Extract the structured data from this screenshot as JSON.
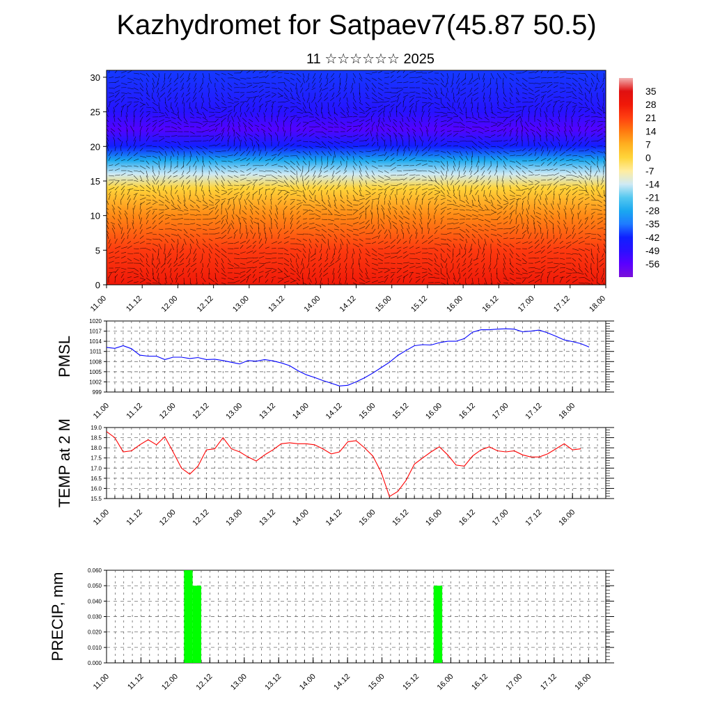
{
  "header": {
    "title": "Kazhydromet for Satpaev7(45.87 50.5)",
    "subtitle": "11 ☆☆☆☆☆☆ 2025"
  },
  "chart_data": [
    {
      "type": "heatmap",
      "title": "",
      "xlabel": "",
      "ylabel": "",
      "x_ticks": [
        "11.00",
        "11.12",
        "12.00",
        "12.12",
        "13.00",
        "13.12",
        "14.00",
        "14.12",
        "15.00",
        "15.12",
        "16.00",
        "16.12",
        "17.00",
        "17.12",
        "18.00"
      ],
      "y_ticks": [
        0,
        5,
        10,
        15,
        20,
        25,
        30
      ],
      "ylim": [
        0,
        31
      ],
      "xlim": [
        0,
        168
      ],
      "colorbar_labels": [
        35,
        28,
        21,
        14,
        7,
        0,
        -7,
        -14,
        -21,
        -28,
        -35,
        -42,
        -49,
        -56
      ],
      "colorbar_range": [
        -63,
        42
      ],
      "temperature_profile": [
        {
          "height": 0,
          "value": 28
        },
        {
          "height": 5,
          "value": 22
        },
        {
          "height": 10,
          "value": 12
        },
        {
          "height": 14,
          "value": 0
        },
        {
          "height": 16,
          "value": -14
        },
        {
          "height": 18,
          "value": -28
        },
        {
          "height": 20,
          "value": -42
        },
        {
          "height": 22.5,
          "value": -55
        },
        {
          "height": 25,
          "value": -48
        },
        {
          "height": 31,
          "value": -40
        }
      ],
      "overlay": "wind vectors"
    },
    {
      "type": "line",
      "ylabel": "PMSL",
      "ylim": [
        999,
        1020
      ],
      "y_ticks": [
        999,
        1002,
        1005,
        1008,
        1011,
        1014,
        1017,
        1020
      ],
      "x_ticks": [
        "11.00",
        "11.12",
        "12.00",
        "12.12",
        "13.00",
        "13.12",
        "14.00",
        "14.12",
        "15.00",
        "15.12",
        "16.00",
        "16.12",
        "17.00",
        "17.12",
        "18.00"
      ],
      "line_color": "#0000ff",
      "series": [
        {
          "values": [
            {
              "x": 0,
              "y": 1012.2
            },
            {
              "x": 3,
              "y": 1011.9
            },
            {
              "x": 6,
              "y": 1012.7
            },
            {
              "x": 9,
              "y": 1011.8
            },
            {
              "x": 12,
              "y": 1009.9
            },
            {
              "x": 15,
              "y": 1009.6
            },
            {
              "x": 18,
              "y": 1009.6
            },
            {
              "x": 21,
              "y": 1008.6
            },
            {
              "x": 24,
              "y": 1009.3
            },
            {
              "x": 27,
              "y": 1009.3
            },
            {
              "x": 30,
              "y": 1008.9
            },
            {
              "x": 33,
              "y": 1009.2
            },
            {
              "x": 36,
              "y": 1008.6
            },
            {
              "x": 39,
              "y": 1008.7
            },
            {
              "x": 42,
              "y": 1008.3
            },
            {
              "x": 45,
              "y": 1007.8
            },
            {
              "x": 48,
              "y": 1007.3
            },
            {
              "x": 51,
              "y": 1008.3
            },
            {
              "x": 54,
              "y": 1008.1
            },
            {
              "x": 57,
              "y": 1008.6
            },
            {
              "x": 60,
              "y": 1008.2
            },
            {
              "x": 63,
              "y": 1007.6
            },
            {
              "x": 66,
              "y": 1006.8
            },
            {
              "x": 69,
              "y": 1005.3
            },
            {
              "x": 72,
              "y": 1004.1
            },
            {
              "x": 75,
              "y": 1003.3
            },
            {
              "x": 78,
              "y": 1002.4
            },
            {
              "x": 81,
              "y": 1001.6
            },
            {
              "x": 84,
              "y": 1000.8
            },
            {
              "x": 87,
              "y": 1001.0
            },
            {
              "x": 90,
              "y": 1002.0
            },
            {
              "x": 93,
              "y": 1003.2
            },
            {
              "x": 96,
              "y": 1004.6
            },
            {
              "x": 99,
              "y": 1006.2
            },
            {
              "x": 102,
              "y": 1007.8
            },
            {
              "x": 105,
              "y": 1009.8
            },
            {
              "x": 108,
              "y": 1011.3
            },
            {
              "x": 111,
              "y": 1012.7
            },
            {
              "x": 114,
              "y": 1013.0
            },
            {
              "x": 117,
              "y": 1012.9
            },
            {
              "x": 120,
              "y": 1013.6
            },
            {
              "x": 123,
              "y": 1014.0
            },
            {
              "x": 126,
              "y": 1014.0
            },
            {
              "x": 129,
              "y": 1014.8
            },
            {
              "x": 132,
              "y": 1016.7
            },
            {
              "x": 135,
              "y": 1017.4
            },
            {
              "x": 138,
              "y": 1017.4
            },
            {
              "x": 141,
              "y": 1017.6
            },
            {
              "x": 144,
              "y": 1017.7
            },
            {
              "x": 147,
              "y": 1017.6
            },
            {
              "x": 150,
              "y": 1016.8
            },
            {
              "x": 153,
              "y": 1017.0
            },
            {
              "x": 156,
              "y": 1017.3
            },
            {
              "x": 159,
              "y": 1016.5
            },
            {
              "x": 162,
              "y": 1015.5
            },
            {
              "x": 165,
              "y": 1014.4
            },
            {
              "x": 168,
              "y": 1013.9
            },
            {
              "x": 171,
              "y": 1013.3
            },
            {
              "x": 174,
              "y": 1012.3
            }
          ]
        }
      ]
    },
    {
      "type": "line",
      "ylabel": "TEMP at 2 M",
      "ylim": [
        15.5,
        19.0
      ],
      "y_ticks": [
        "15.5",
        "16.0",
        "16.5",
        "17.0",
        "17.5",
        "18.0",
        "18.5",
        "19.0"
      ],
      "x_ticks": [
        "11.00",
        "11.12",
        "12.00",
        "12.12",
        "13.00",
        "13.12",
        "14.00",
        "14.12",
        "15.00",
        "15.12",
        "16.00",
        "16.12",
        "17.00",
        "17.12",
        "18.00"
      ],
      "line_color": "#ff0000",
      "series": [
        {
          "values": [
            {
              "x": 0,
              "y": 18.8
            },
            {
              "x": 3,
              "y": 18.5
            },
            {
              "x": 6,
              "y": 17.8
            },
            {
              "x": 9,
              "y": 17.85
            },
            {
              "x": 12,
              "y": 18.15
            },
            {
              "x": 15,
              "y": 18.4
            },
            {
              "x": 18,
              "y": 18.15
            },
            {
              "x": 21,
              "y": 18.55
            },
            {
              "x": 24,
              "y": 17.8
            },
            {
              "x": 27,
              "y": 17.0
            },
            {
              "x": 30,
              "y": 16.7
            },
            {
              "x": 33,
              "y": 17.1
            },
            {
              "x": 36,
              "y": 17.9
            },
            {
              "x": 39,
              "y": 17.95
            },
            {
              "x": 42,
              "y": 18.5
            },
            {
              "x": 45,
              "y": 17.95
            },
            {
              "x": 48,
              "y": 17.8
            },
            {
              "x": 51,
              "y": 17.55
            },
            {
              "x": 54,
              "y": 17.35
            },
            {
              "x": 57,
              "y": 17.65
            },
            {
              "x": 60,
              "y": 17.9
            },
            {
              "x": 63,
              "y": 18.2
            },
            {
              "x": 66,
              "y": 18.25
            },
            {
              "x": 69,
              "y": 18.2
            },
            {
              "x": 72,
              "y": 18.2
            },
            {
              "x": 75,
              "y": 18.15
            },
            {
              "x": 78,
              "y": 17.95
            },
            {
              "x": 81,
              "y": 17.7
            },
            {
              "x": 84,
              "y": 17.8
            },
            {
              "x": 87,
              "y": 18.3
            },
            {
              "x": 90,
              "y": 18.35
            },
            {
              "x": 93,
              "y": 18.0
            },
            {
              "x": 96,
              "y": 17.6
            },
            {
              "x": 99,
              "y": 16.8
            },
            {
              "x": 102,
              "y": 15.6
            },
            {
              "x": 105,
              "y": 15.85
            },
            {
              "x": 108,
              "y": 16.4
            },
            {
              "x": 111,
              "y": 17.2
            },
            {
              "x": 114,
              "y": 17.5
            },
            {
              "x": 117,
              "y": 17.8
            },
            {
              "x": 120,
              "y": 18.05
            },
            {
              "x": 123,
              "y": 17.65
            },
            {
              "x": 126,
              "y": 17.15
            },
            {
              "x": 129,
              "y": 17.1
            },
            {
              "x": 132,
              "y": 17.6
            },
            {
              "x": 135,
              "y": 17.9
            },
            {
              "x": 138,
              "y": 18.05
            },
            {
              "x": 141,
              "y": 17.85
            },
            {
              "x": 144,
              "y": 17.8
            },
            {
              "x": 147,
              "y": 17.85
            },
            {
              "x": 150,
              "y": 17.65
            },
            {
              "x": 153,
              "y": 17.55
            },
            {
              "x": 156,
              "y": 17.55
            },
            {
              "x": 159,
              "y": 17.7
            },
            {
              "x": 162,
              "y": 17.95
            },
            {
              "x": 165,
              "y": 18.2
            },
            {
              "x": 168,
              "y": 17.9
            },
            {
              "x": 171,
              "y": 17.95
            }
          ]
        }
      ]
    },
    {
      "type": "bar",
      "ylabel": "PRECIP, mm",
      "ylim": [
        0,
        0.06
      ],
      "y_ticks": [
        "0.000",
        "0.010",
        "0.020",
        "0.030",
        "0.040",
        "0.050",
        "0.060"
      ],
      "x_ticks": [
        "11.00",
        "11.12",
        "12.00",
        "12.12",
        "13.00",
        "13.12",
        "14.00",
        "14.12",
        "15.00",
        "15.12",
        "16.00",
        "16.12",
        "17.00",
        "17.12",
        "18.00"
      ],
      "bar_color": "#00ff00",
      "bars": [
        {
          "x0": 27,
          "x1": 30,
          "value": 0.06
        },
        {
          "x0": 30,
          "x1": 33,
          "value": 0.05
        },
        {
          "x0": 114,
          "x1": 117,
          "value": 0.05
        }
      ]
    }
  ]
}
